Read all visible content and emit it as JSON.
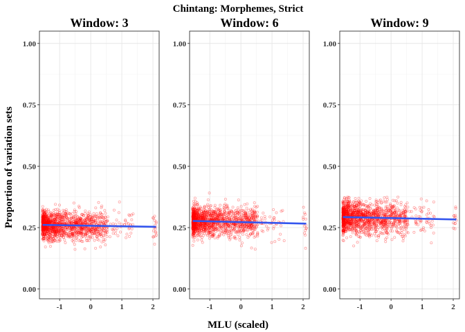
{
  "chart_data": {
    "type": "scatter",
    "title": "Chintang: Morphemes, Strict",
    "xlabel": "MLU (scaled)",
    "ylabel": "Proportion of variation sets",
    "xlim": [
      -1.65,
      2.2
    ],
    "ylim": [
      -0.04,
      1.05
    ],
    "xticks": [
      -1,
      0,
      1,
      2
    ],
    "xtick_labels": [
      "-1",
      "0",
      "1",
      "2"
    ],
    "yticks": [
      0,
      0.25,
      0.5,
      0.75,
      1
    ],
    "ytick_labels": [
      "0.00",
      "0.25",
      "0.50",
      "0.75",
      "1.00"
    ],
    "grid": true,
    "point_color": "#ff0000",
    "line_color": "#3355ee",
    "panels": [
      {
        "label": "Window: 3",
        "trend": {
          "x": [
            -1.55,
            2.1
          ],
          "y": [
            0.261,
            0.253
          ]
        },
        "cloud_center": 0.258,
        "cloud_spread": 0.04
      },
      {
        "label": "Window: 6",
        "trend": {
          "x": [
            -1.55,
            2.1
          ],
          "y": [
            0.277,
            0.266
          ]
        },
        "cloud_center": 0.275,
        "cloud_spread": 0.042
      },
      {
        "label": "Window: 9",
        "trend": {
          "x": [
            -1.55,
            2.1
          ],
          "y": [
            0.293,
            0.283
          ]
        },
        "cloud_center": 0.29,
        "cloud_spread": 0.045
      }
    ]
  }
}
